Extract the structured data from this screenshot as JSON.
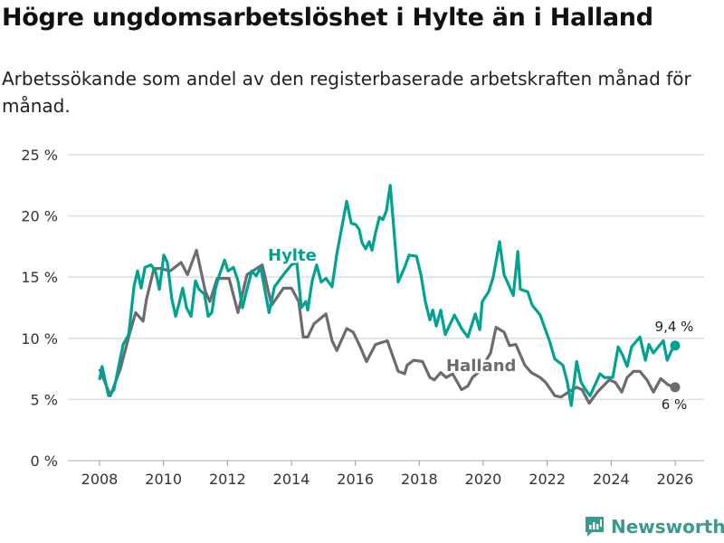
{
  "title": "Högre ungdomsarbetslöshet i Hylte än i Halland",
  "subtitle": "Arbetssökande som andel av den registerbaserade arbetskraften månad för månad.",
  "brand": "Newsworthy",
  "colors": {
    "hylte": "#00a391",
    "halland": "#6d6b70",
    "grid": "#dddddd",
    "brand": "#3a9a8c"
  },
  "chart_data": {
    "type": "line",
    "title": "Högre ungdomsarbetslöshet i Hylte än i Halland",
    "xlabel": "",
    "ylabel": "",
    "xlim": [
      2008,
      2026
    ],
    "ylim": [
      0,
      25
    ],
    "x_ticks": [
      2008,
      2010,
      2012,
      2014,
      2016,
      2018,
      2020,
      2022,
      2024,
      2026
    ],
    "y_ticks": [
      0,
      5,
      10,
      15,
      20,
      25
    ],
    "y_tick_labels": [
      "0 %",
      "5 %",
      "10 %",
      "15 %",
      "20 %",
      "25 %"
    ],
    "grid": true,
    "legend": "inline labels",
    "series": [
      {
        "name": "Hylte",
        "end_label": "9,4 %",
        "points": [
          [
            2008.0,
            6.6
          ],
          [
            2008.08,
            7.7
          ],
          [
            2008.28,
            5.3
          ],
          [
            2008.45,
            5.8
          ],
          [
            2008.74,
            9.5
          ],
          [
            2008.91,
            10.3
          ],
          [
            2009.08,
            14.3
          ],
          [
            2009.19,
            15.5
          ],
          [
            2009.3,
            14.1
          ],
          [
            2009.42,
            15.8
          ],
          [
            2009.61,
            16.0
          ],
          [
            2009.75,
            15.5
          ],
          [
            2009.87,
            14.0
          ],
          [
            2010.01,
            16.8
          ],
          [
            2010.12,
            16.2
          ],
          [
            2010.26,
            13.2
          ],
          [
            2010.38,
            11.8
          ],
          [
            2010.49,
            12.9
          ],
          [
            2010.6,
            14.1
          ],
          [
            2010.72,
            12.5
          ],
          [
            2010.86,
            11.8
          ],
          [
            2011.0,
            14.7
          ],
          [
            2011.11,
            14.0
          ],
          [
            2011.28,
            13.6
          ],
          [
            2011.4,
            11.8
          ],
          [
            2011.51,
            12.1
          ],
          [
            2011.62,
            14.0
          ],
          [
            2011.74,
            15.1
          ],
          [
            2011.91,
            16.4
          ],
          [
            2012.02,
            15.5
          ],
          [
            2012.19,
            15.8
          ],
          [
            2012.33,
            14.7
          ],
          [
            2012.47,
            12.5
          ],
          [
            2012.61,
            14.0
          ],
          [
            2012.76,
            15.5
          ],
          [
            2012.9,
            15.1
          ],
          [
            2013.04,
            15.8
          ],
          [
            2013.3,
            12.1
          ],
          [
            2013.47,
            14.2
          ],
          [
            2013.75,
            15.2
          ],
          [
            2014.0,
            16.0
          ],
          [
            2014.17,
            16.2
          ],
          [
            2014.31,
            12.5
          ],
          [
            2014.45,
            13.0
          ],
          [
            2014.51,
            12.3
          ],
          [
            2014.65,
            14.7
          ],
          [
            2014.79,
            16.0
          ],
          [
            2014.93,
            14.6
          ],
          [
            2015.08,
            14.9
          ],
          [
            2015.27,
            14.2
          ],
          [
            2015.42,
            16.9
          ],
          [
            2015.73,
            21.2
          ],
          [
            2015.87,
            19.4
          ],
          [
            2016.01,
            19.3
          ],
          [
            2016.12,
            18.9
          ],
          [
            2016.21,
            17.8
          ],
          [
            2016.32,
            17.3
          ],
          [
            2016.43,
            17.9
          ],
          [
            2016.52,
            17.2
          ],
          [
            2016.63,
            18.6
          ],
          [
            2016.75,
            19.9
          ],
          [
            2016.86,
            19.7
          ],
          [
            2016.97,
            20.4
          ],
          [
            2017.09,
            22.5
          ],
          [
            2017.34,
            14.6
          ],
          [
            2017.54,
            15.8
          ],
          [
            2017.68,
            16.8
          ],
          [
            2017.91,
            16.7
          ],
          [
            2018.05,
            15.2
          ],
          [
            2018.19,
            13.0
          ],
          [
            2018.33,
            11.5
          ],
          [
            2018.42,
            12.3
          ],
          [
            2018.53,
            11.0
          ],
          [
            2018.67,
            12.3
          ],
          [
            2018.81,
            10.3
          ],
          [
            2019.1,
            11.9
          ],
          [
            2019.32,
            10.8
          ],
          [
            2019.52,
            10.1
          ],
          [
            2019.75,
            12.0
          ],
          [
            2019.89,
            10.7
          ],
          [
            2019.97,
            13.0
          ],
          [
            2020.17,
            13.8
          ],
          [
            2020.31,
            15.0
          ],
          [
            2020.51,
            17.9
          ],
          [
            2020.65,
            15.2
          ],
          [
            2020.94,
            13.5
          ],
          [
            2021.08,
            17.1
          ],
          [
            2021.16,
            14.0
          ],
          [
            2021.39,
            13.8
          ],
          [
            2021.53,
            12.7
          ],
          [
            2021.78,
            11.9
          ],
          [
            2021.93,
            10.8
          ],
          [
            2022.07,
            9.8
          ],
          [
            2022.24,
            8.3
          ],
          [
            2022.49,
            7.8
          ],
          [
            2022.63,
            6.4
          ],
          [
            2022.75,
            4.5
          ],
          [
            2022.92,
            8.1
          ],
          [
            2023.06,
            6.4
          ],
          [
            2023.2,
            5.8
          ],
          [
            2023.34,
            5.3
          ],
          [
            2023.65,
            7.1
          ],
          [
            2023.79,
            6.8
          ],
          [
            2024.05,
            6.8
          ],
          [
            2024.22,
            9.3
          ],
          [
            2024.36,
            8.6
          ],
          [
            2024.5,
            7.7
          ],
          [
            2024.64,
            9.3
          ],
          [
            2024.9,
            10.1
          ],
          [
            2025.07,
            8.2
          ],
          [
            2025.18,
            9.5
          ],
          [
            2025.32,
            8.8
          ],
          [
            2025.63,
            9.8
          ],
          [
            2025.75,
            8.2
          ],
          [
            2025.89,
            9.0
          ],
          [
            2026.0,
            9.4
          ]
        ]
      },
      {
        "name": "Halland",
        "end_label": "6 %",
        "points": [
          [
            2008.0,
            7.5
          ],
          [
            2008.34,
            5.3
          ],
          [
            2008.65,
            7.5
          ],
          [
            2008.93,
            10.3
          ],
          [
            2009.13,
            12.1
          ],
          [
            2009.36,
            11.4
          ],
          [
            2009.47,
            13.2
          ],
          [
            2009.7,
            15.7
          ],
          [
            2009.9,
            15.7
          ],
          [
            2010.21,
            15.5
          ],
          [
            2010.55,
            16.2
          ],
          [
            2010.75,
            15.2
          ],
          [
            2011.03,
            17.2
          ],
          [
            2011.31,
            13.8
          ],
          [
            2011.45,
            13.0
          ],
          [
            2011.68,
            14.9
          ],
          [
            2012.05,
            14.9
          ],
          [
            2012.33,
            12.1
          ],
          [
            2012.61,
            15.2
          ],
          [
            2013.09,
            16.0
          ],
          [
            2013.38,
            12.7
          ],
          [
            2013.75,
            14.1
          ],
          [
            2014.0,
            14.1
          ],
          [
            2014.23,
            13.0
          ],
          [
            2014.37,
            10.1
          ],
          [
            2014.51,
            10.1
          ],
          [
            2014.71,
            11.2
          ],
          [
            2015.08,
            12.0
          ],
          [
            2015.27,
            9.8
          ],
          [
            2015.42,
            9.0
          ],
          [
            2015.73,
            10.8
          ],
          [
            2015.93,
            10.5
          ],
          [
            2016.12,
            9.5
          ],
          [
            2016.35,
            8.1
          ],
          [
            2016.63,
            9.5
          ],
          [
            2017.0,
            9.8
          ],
          [
            2017.34,
            7.3
          ],
          [
            2017.54,
            7.1
          ],
          [
            2017.62,
            7.8
          ],
          [
            2017.82,
            8.2
          ],
          [
            2018.1,
            8.1
          ],
          [
            2018.33,
            6.8
          ],
          [
            2018.47,
            6.6
          ],
          [
            2018.67,
            7.2
          ],
          [
            2018.84,
            6.8
          ],
          [
            2019.04,
            7.1
          ],
          [
            2019.32,
            5.8
          ],
          [
            2019.52,
            6.1
          ],
          [
            2019.66,
            6.8
          ],
          [
            2019.89,
            7.3
          ],
          [
            2020.23,
            8.8
          ],
          [
            2020.4,
            10.9
          ],
          [
            2020.65,
            10.5
          ],
          [
            2020.82,
            9.4
          ],
          [
            2021.02,
            9.5
          ],
          [
            2021.3,
            7.8
          ],
          [
            2021.5,
            7.2
          ],
          [
            2021.78,
            6.8
          ],
          [
            2021.95,
            6.4
          ],
          [
            2022.24,
            5.3
          ],
          [
            2022.43,
            5.2
          ],
          [
            2022.66,
            5.6
          ],
          [
            2022.92,
            6.0
          ],
          [
            2023.09,
            5.8
          ],
          [
            2023.31,
            4.7
          ],
          [
            2023.57,
            5.6
          ],
          [
            2023.94,
            6.6
          ],
          [
            2024.13,
            6.4
          ],
          [
            2024.33,
            5.6
          ],
          [
            2024.5,
            6.8
          ],
          [
            2024.7,
            7.3
          ],
          [
            2024.9,
            7.3
          ],
          [
            2025.12,
            6.6
          ],
          [
            2025.32,
            5.6
          ],
          [
            2025.55,
            6.7
          ],
          [
            2025.78,
            6.2
          ],
          [
            2026.0,
            6.0
          ]
        ]
      }
    ]
  }
}
